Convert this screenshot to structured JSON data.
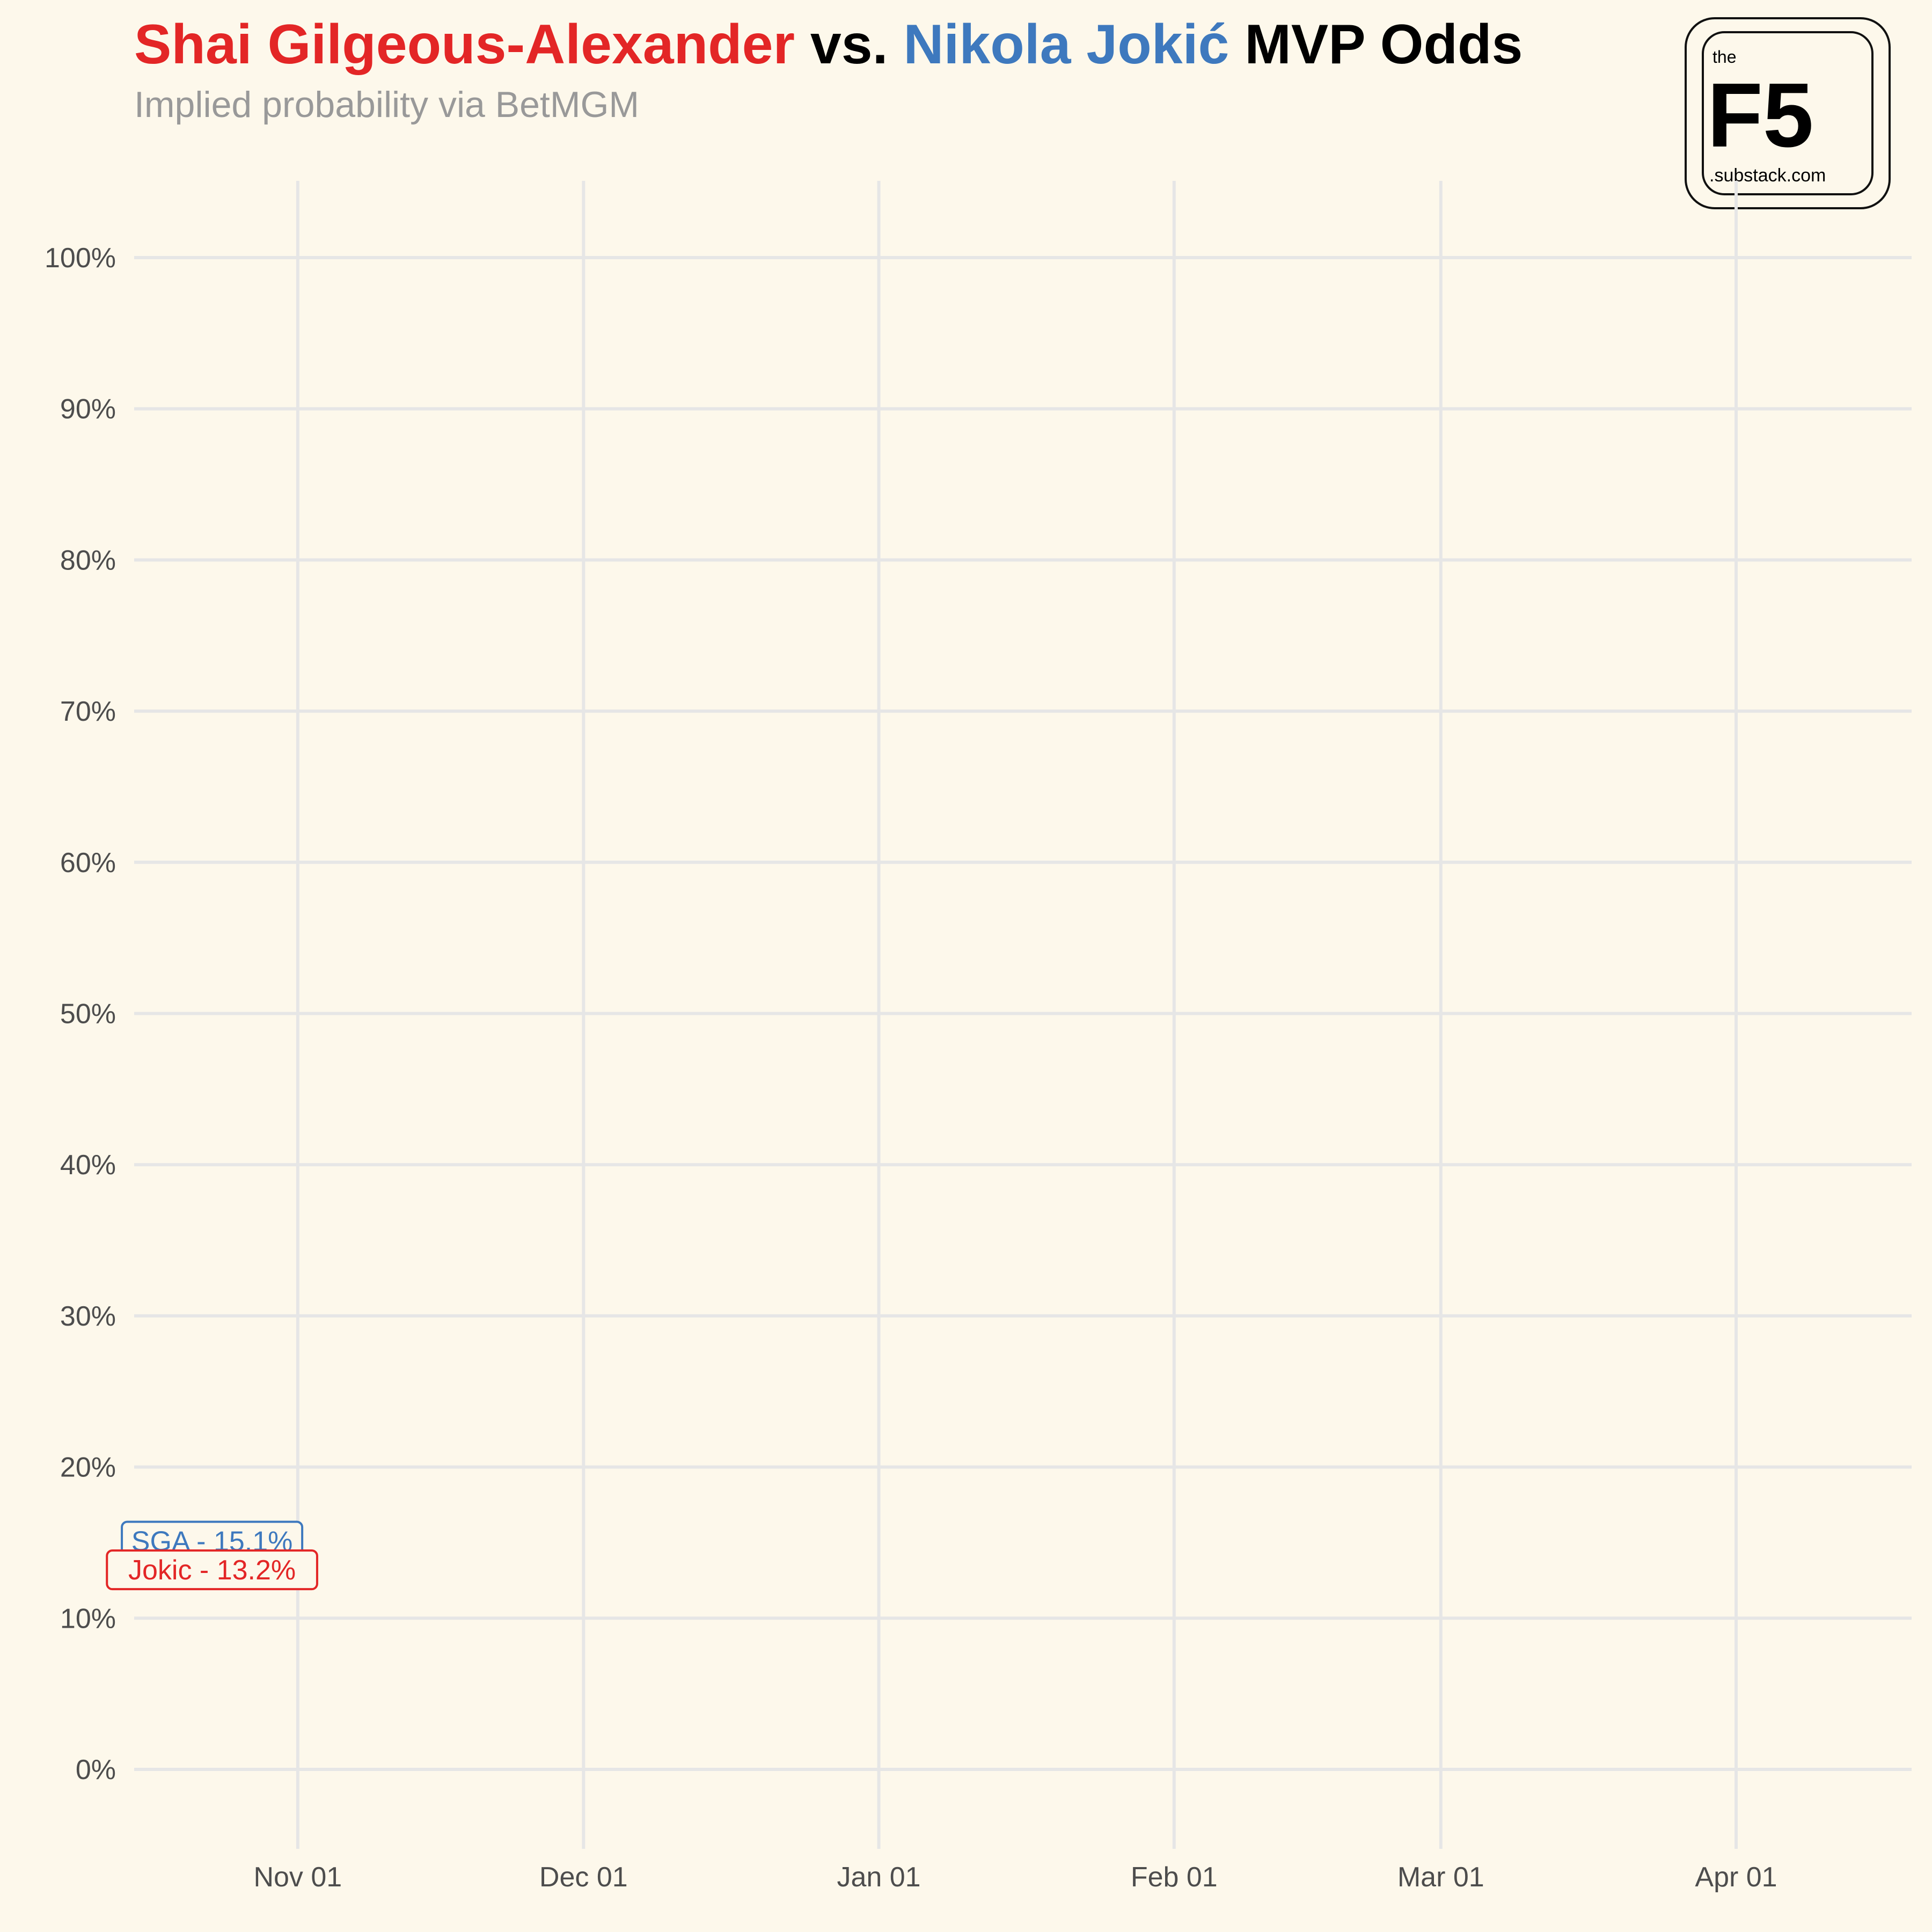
{
  "title": {
    "part1": "Shai Gilgeous-Alexander",
    "part2": " vs. ",
    "part3": "Nikola Jokić",
    "part4": " MVP Odds"
  },
  "subtitle": "Implied probability via BetMGM",
  "logo": {
    "top_text": "the",
    "main_text": "F5",
    "bottom_text": ".substack.com"
  },
  "colors": {
    "sga": "#e32626",
    "jokic": "#3e79be",
    "background": "#fdf8eb",
    "grid": "#e6e6e6",
    "axis_text": "#4d4d4d"
  },
  "chart_data": {
    "type": "line",
    "title": "Shai Gilgeous-Alexander vs. Nikola Jokić MVP Odds",
    "subtitle": "Implied probability via BetMGM",
    "xlabel": "",
    "ylabel": "",
    "x_ticks": [
      "Nov 01",
      "Dec 01",
      "Jan 01",
      "Feb 01",
      "Mar 01",
      "Apr 01"
    ],
    "y_ticks": [
      "0%",
      "10%",
      "20%",
      "30%",
      "40%",
      "50%",
      "60%",
      "70%",
      "80%",
      "90%",
      "100%"
    ],
    "ylim": [
      0,
      100
    ],
    "grid": true,
    "series": [
      {
        "name": "SGA",
        "color": "#3e79be",
        "points": [
          {
            "x": "2024-10-23",
            "y": 15.1
          }
        ],
        "label": "SGA - 15.1%"
      },
      {
        "name": "Jokic",
        "color": "#e32626",
        "points": [
          {
            "x": "2024-10-23",
            "y": 13.2
          }
        ],
        "label": "Jokic - 13.2%"
      }
    ]
  }
}
